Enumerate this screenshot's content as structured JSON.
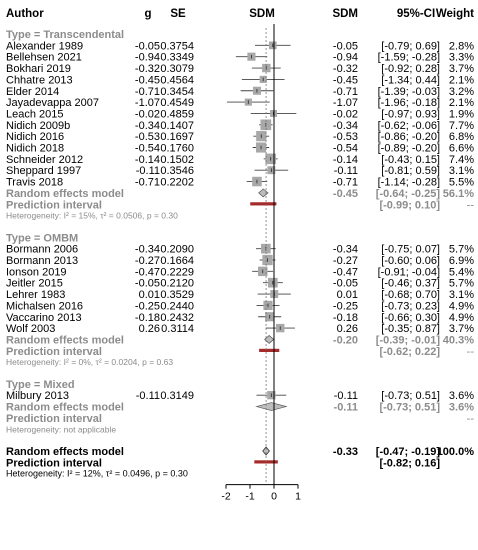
{
  "header": {
    "author": "Author",
    "g": "g",
    "se": "SE",
    "sdm_plot": "SDM",
    "sdm_col": "SDM",
    "ci": "95%-CI",
    "weight": "Weight"
  },
  "colors": {
    "text": "#000000",
    "muted": "#8c8c8c",
    "box": "#a8a8a8",
    "diamond": "#bdbdbd",
    "prediction": "#a52a2a",
    "axis": "#000000"
  },
  "chart_data": {
    "type": "forest",
    "xlim": [
      -2,
      1
    ],
    "ticks": [
      -2,
      -1,
      0,
      1
    ],
    "groups": [
      {
        "label": "Type = Transcendental",
        "studies": [
          {
            "author": "Alexander 1989",
            "g": "-0.05",
            "se": "0.3754",
            "sdm": "-0.05",
            "ci": "[-0.79; 0.69]",
            "weight": "2.8%",
            "est": -0.05,
            "lo": -0.79,
            "hi": 0.69,
            "w": 2.8
          },
          {
            "author": "Bellehsen 2021",
            "g": "-0.94",
            "se": "0.3349",
            "sdm": "-0.94",
            "ci": "[-1.59; -0.28]",
            "weight": "3.3%",
            "est": -0.94,
            "lo": -1.59,
            "hi": -0.28,
            "w": 3.3
          },
          {
            "author": "Bokhari 2019",
            "g": "-0.32",
            "se": "0.3079",
            "sdm": "-0.32",
            "ci": "[-0.92; 0.28]",
            "weight": "3.7%",
            "est": -0.32,
            "lo": -0.92,
            "hi": 0.28,
            "w": 3.7
          },
          {
            "author": "Chhatre 2013",
            "g": "-0.45",
            "se": "0.4564",
            "sdm": "-0.45",
            "ci": "[-1.34; 0.44]",
            "weight": "2.1%",
            "est": -0.45,
            "lo": -1.34,
            "hi": 0.44,
            "w": 2.1
          },
          {
            "author": "Elder 2014",
            "g": "-0.71",
            "se": "0.3454",
            "sdm": "-0.71",
            "ci": "[-1.39; -0.03]",
            "weight": "3.2%",
            "est": -0.71,
            "lo": -1.39,
            "hi": -0.03,
            "w": 3.2
          },
          {
            "author": "Jayadevappa 2007",
            "g": "-1.07",
            "se": "0.4549",
            "sdm": "-1.07",
            "ci": "[-1.96; -0.18]",
            "weight": "2.1%",
            "est": -1.07,
            "lo": -1.96,
            "hi": -0.18,
            "w": 2.1
          },
          {
            "author": "Leach 2015",
            "g": "-0.02",
            "se": "0.4859",
            "sdm": "-0.02",
            "ci": "[-0.97; 0.93]",
            "weight": "1.9%",
            "est": -0.02,
            "lo": -0.97,
            "hi": 0.93,
            "w": 1.9
          },
          {
            "author": "Nidich 2009b",
            "g": "-0.34",
            "se": "0.1407",
            "sdm": "-0.34",
            "ci": "[-0.62; -0.06]",
            "weight": "7.7%",
            "est": -0.34,
            "lo": -0.62,
            "hi": -0.06,
            "w": 7.7
          },
          {
            "author": "Nidich 2016",
            "g": "-0.53",
            "se": "0.1697",
            "sdm": "-0.53",
            "ci": "[-0.86; -0.20]",
            "weight": "6.8%",
            "est": -0.53,
            "lo": -0.86,
            "hi": -0.2,
            "w": 6.8
          },
          {
            "author": "Nidich 2018",
            "g": "-0.54",
            "se": "0.1760",
            "sdm": "-0.54",
            "ci": "[-0.89; -0.20]",
            "weight": "6.6%",
            "est": -0.54,
            "lo": -0.89,
            "hi": -0.2,
            "w": 6.6
          },
          {
            "author": "Schneider 2012",
            "g": "-0.14",
            "se": "0.1502",
            "sdm": "-0.14",
            "ci": "[-0.43; 0.15]",
            "weight": "7.4%",
            "est": -0.14,
            "lo": -0.43,
            "hi": 0.15,
            "w": 7.4
          },
          {
            "author": "Sheppard 1997",
            "g": "-0.11",
            "se": "0.3546",
            "sdm": "-0.11",
            "ci": "[-0.81; 0.59]",
            "weight": "3.1%",
            "est": -0.11,
            "lo": -0.81,
            "hi": 0.59,
            "w": 3.1
          },
          {
            "author": "Travis 2018",
            "g": "-0.71",
            "se": "0.2202",
            "sdm": "-0.71",
            "ci": "[-1.14; -0.28]",
            "weight": "5.5%",
            "est": -0.71,
            "lo": -1.14,
            "hi": -0.28,
            "w": 5.5
          }
        ],
        "random": {
          "label": "Random effects model",
          "sdm": "-0.45",
          "ci": "[-0.64; -0.25]",
          "weight": "56.1%",
          "est": -0.45,
          "lo": -0.64,
          "hi": -0.25
        },
        "prediction": {
          "label": "Prediction interval",
          "ci": "[-0.99; 0.10]",
          "weight": "--",
          "lo": -0.99,
          "hi": 0.1
        },
        "heterogeneity": "Heterogeneity: I² = 15%, τ² = 0.0506, p = 0.30"
      },
      {
        "label": "Type = OMBM",
        "studies": [
          {
            "author": "Bormann 2006",
            "g": "-0.34",
            "se": "0.2090",
            "sdm": "-0.34",
            "ci": "[-0.75; 0.07]",
            "weight": "5.7%",
            "est": -0.34,
            "lo": -0.75,
            "hi": 0.07,
            "w": 5.7
          },
          {
            "author": "Bormann 2013",
            "g": "-0.27",
            "se": "0.1664",
            "sdm": "-0.27",
            "ci": "[-0.60; 0.06]",
            "weight": "6.9%",
            "est": -0.27,
            "lo": -0.6,
            "hi": 0.06,
            "w": 6.9
          },
          {
            "author": "Ionson 2019",
            "g": "-0.47",
            "se": "0.2229",
            "sdm": "-0.47",
            "ci": "[-0.91; -0.04]",
            "weight": "5.4%",
            "est": -0.47,
            "lo": -0.91,
            "hi": -0.04,
            "w": 5.4
          },
          {
            "author": "Jeitler 2015",
            "g": "-0.05",
            "se": "0.2120",
            "sdm": "-0.05",
            "ci": "[-0.46; 0.37]",
            "weight": "5.7%",
            "est": -0.05,
            "lo": -0.46,
            "hi": 0.37,
            "w": 5.7
          },
          {
            "author": "Lehrer 1983",
            "g": "0.01",
            "se": "0.3529",
            "sdm": "0.01",
            "ci": "[-0.68; 0.70]",
            "weight": "3.1%",
            "est": 0.01,
            "lo": -0.68,
            "hi": 0.7,
            "w": 3.1
          },
          {
            "author": "Michalsen 2016",
            "g": "-0.25",
            "se": "0.2440",
            "sdm": "-0.25",
            "ci": "[-0.73; 0.23]",
            "weight": "4.9%",
            "est": -0.25,
            "lo": -0.73,
            "hi": 0.23,
            "w": 4.9
          },
          {
            "author": "Vaccarino 2013",
            "g": "-0.18",
            "se": "0.2432",
            "sdm": "-0.18",
            "ci": "[-0.66; 0.30]",
            "weight": "4.9%",
            "est": -0.18,
            "lo": -0.66,
            "hi": 0.3,
            "w": 4.9
          },
          {
            "author": "Wolf 2003",
            "g": "0.26",
            "se": "0.3114",
            "sdm": "0.26",
            "ci": "[-0.35; 0.87]",
            "weight": "3.7%",
            "est": 0.26,
            "lo": -0.35,
            "hi": 0.87,
            "w": 3.7
          }
        ],
        "random": {
          "label": "Random effects model",
          "sdm": "-0.20",
          "ci": "[-0.39; -0.01]",
          "weight": "40.3%",
          "est": -0.2,
          "lo": -0.39,
          "hi": -0.01
        },
        "prediction": {
          "label": "Prediction interval",
          "ci": "[-0.62; 0.22]",
          "weight": "--",
          "lo": -0.62,
          "hi": 0.22
        },
        "heterogeneity": "Heterogeneity: I² = 0%, τ² = 0.0204, p = 0.63"
      },
      {
        "label": "Type = Mixed",
        "studies": [
          {
            "author": "Milbury 2013",
            "g": "-0.11",
            "se": "0.3149",
            "sdm": "-0.11",
            "ci": "[-0.73; 0.51]",
            "weight": "3.6%",
            "est": -0.11,
            "lo": -0.73,
            "hi": 0.51,
            "w": 3.6
          }
        ],
        "random": {
          "label": "Random effects model",
          "sdm": "-0.11",
          "ci": "[-0.73; 0.51]",
          "weight": "3.6%",
          "est": -0.11,
          "lo": -0.73,
          "hi": 0.51
        },
        "prediction": {
          "label": "Prediction interval",
          "ci": "",
          "weight": "--",
          "lo": null,
          "hi": null
        },
        "heterogeneity": "Heterogeneity: not applicable"
      }
    ],
    "overall": {
      "random": {
        "label": "Random effects model",
        "sdm": "-0.33",
        "ci": "[-0.47; -0.19]",
        "weight": "100.0%",
        "est": -0.33,
        "lo": -0.47,
        "hi": -0.19
      },
      "prediction": {
        "label": "Prediction interval",
        "ci": "[-0.82; 0.16]",
        "lo": -0.82,
        "hi": 0.16
      },
      "heterogeneity": "Heterogeneity: I² = 12%, τ² = 0.0496, p = 0.30"
    }
  }
}
